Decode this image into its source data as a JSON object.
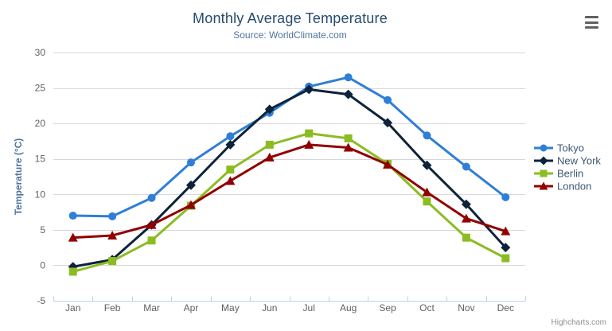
{
  "chart": {
    "title": "Monthly Average Temperature",
    "subtitle": "Source: WorldClimate.com",
    "credit": "Highcharts.com",
    "menu_icon": "hamburger-icon"
  },
  "chart_data": {
    "type": "line",
    "title": "Monthly Average Temperature",
    "subtitle": "Source: WorldClimate.com",
    "xlabel": "",
    "ylabel": "Temperature (°C)",
    "categories": [
      "Jan",
      "Feb",
      "Mar",
      "Apr",
      "May",
      "Jun",
      "Jul",
      "Aug",
      "Sep",
      "Oct",
      "Nov",
      "Dec"
    ],
    "ylim": [
      -5,
      30
    ],
    "yticks": [
      -5,
      0,
      5,
      10,
      15,
      20,
      25,
      30
    ],
    "grid": true,
    "legend_position": "right",
    "series": [
      {
        "name": "Tokyo",
        "color": "#2f7ed8",
        "marker": "circle",
        "values": [
          7.0,
          6.9,
          9.5,
          14.5,
          18.2,
          21.5,
          25.2,
          26.5,
          23.3,
          18.3,
          13.9,
          9.6
        ]
      },
      {
        "name": "New York",
        "color": "#0d233a",
        "marker": "diamond",
        "values": [
          -0.2,
          0.8,
          5.7,
          11.3,
          17.0,
          22.0,
          24.8,
          24.1,
          20.1,
          14.1,
          8.6,
          2.5
        ]
      },
      {
        "name": "Berlin",
        "color": "#8bbc21",
        "marker": "square",
        "values": [
          -0.9,
          0.6,
          3.5,
          8.4,
          13.5,
          17.0,
          18.6,
          17.9,
          14.3,
          9.0,
          3.9,
          1.0
        ]
      },
      {
        "name": "London",
        "color": "#910000",
        "marker": "triangle",
        "values": [
          3.9,
          4.2,
          5.7,
          8.5,
          11.9,
          15.2,
          17.0,
          16.6,
          14.2,
          10.3,
          6.6,
          4.8
        ]
      }
    ],
    "style": {
      "grid_color": "#d8d8d8",
      "axis_line_color": "#c0d0e0",
      "tick_label_color": "#606060",
      "axis_title_color": "#4d759e",
      "legend_text_color": "#3e576f"
    }
  }
}
